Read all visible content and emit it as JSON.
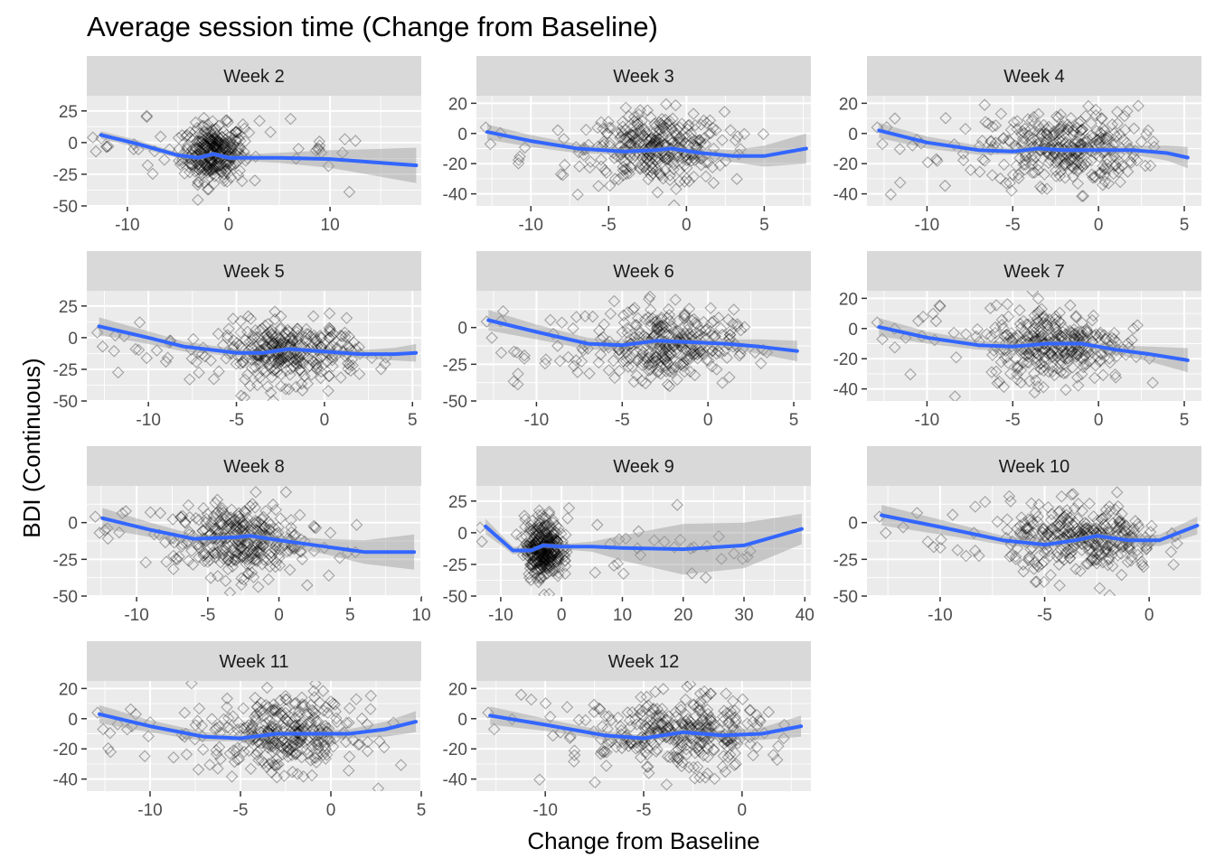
{
  "title": "Average session time (Change from Baseline)",
  "xlabel": "Change from Baseline",
  "ylabel": "BDI (Continuous)",
  "colors": {
    "panel_bg": "#ebebeb",
    "strip_bg": "#d9d9d9",
    "grid": "#ffffff",
    "point": "#000000",
    "smooth_line": "#3366ff",
    "ribbon": "#999999",
    "tick_text": "#4d4d4d"
  },
  "chart_data": {
    "type": "scatter",
    "layout": "facet-wrap 3 columns",
    "point_shape": "open diamond",
    "smoother": "loess with confidence band",
    "grid": true,
    "legend": "none",
    "panels": [
      {
        "name": "Week 2",
        "xlim": [
          -14,
          19
        ],
        "ylim": [
          -50,
          37
        ],
        "xticks": [
          -10,
          0,
          10
        ],
        "yticks": [
          -50,
          -25,
          0,
          25
        ],
        "cluster": {
          "cx": -1.5,
          "sx": 1.5,
          "cy": -8,
          "sy": 11,
          "n": 300
        },
        "smooth": [
          [
            -12.6,
            6
          ],
          [
            -9,
            -1
          ],
          [
            -5,
            -10
          ],
          [
            -3,
            -12
          ],
          [
            -1.5,
            -9
          ],
          [
            0,
            -12
          ],
          [
            5,
            -12
          ],
          [
            10,
            -13
          ],
          [
            15,
            -16
          ],
          [
            18.5,
            -18
          ]
        ],
        "band": [
          3,
          3,
          2,
          2,
          2,
          2,
          4,
          7,
          11,
          14
        ]
      },
      {
        "name": "Week 3",
        "xlim": [
          -13.5,
          8
        ],
        "ylim": [
          -48,
          25
        ],
        "xticks": [
          -10,
          -5,
          0,
          5
        ],
        "yticks": [
          -40,
          -20,
          0,
          20
        ],
        "cluster": {
          "cx": -2,
          "sx": 2.2,
          "cy": -10,
          "sy": 12,
          "n": 300
        },
        "smooth": [
          [
            -12.8,
            1
          ],
          [
            -10,
            -5
          ],
          [
            -7,
            -10
          ],
          [
            -4,
            -12
          ],
          [
            -2,
            -11
          ],
          [
            -1,
            -10
          ],
          [
            1,
            -13
          ],
          [
            3,
            -15
          ],
          [
            5,
            -15
          ],
          [
            7.7,
            -10
          ]
        ],
        "band": [
          5,
          4,
          3,
          2,
          2,
          2,
          3,
          4,
          7,
          10
        ]
      },
      {
        "name": "Week 4",
        "xlim": [
          -13.5,
          6
        ],
        "ylim": [
          -48,
          25
        ],
        "xticks": [
          -10,
          -5,
          0,
          5
        ],
        "yticks": [
          -40,
          -20,
          0,
          20
        ],
        "cluster": {
          "cx": -2,
          "sx": 2.2,
          "cy": -10,
          "sy": 12,
          "n": 300
        },
        "smooth": [
          [
            -12.8,
            2
          ],
          [
            -10,
            -6
          ],
          [
            -7,
            -11
          ],
          [
            -5,
            -12
          ],
          [
            -3.5,
            -10
          ],
          [
            -2,
            -11
          ],
          [
            0,
            -11
          ],
          [
            2,
            -11
          ],
          [
            4,
            -13
          ],
          [
            5.2,
            -16
          ]
        ],
        "band": [
          5,
          4,
          3,
          2,
          2,
          2,
          2,
          3,
          5,
          7
        ]
      },
      {
        "name": "Week 5",
        "xlim": [
          -13.5,
          5.5
        ],
        "ylim": [
          -50,
          37
        ],
        "xticks": [
          -10,
          -5,
          0,
          5
        ],
        "yticks": [
          -50,
          -25,
          0,
          25
        ],
        "cluster": {
          "cx": -2,
          "sx": 2.0,
          "cy": -12,
          "sy": 12,
          "n": 300
        },
        "smooth": [
          [
            -12.8,
            9
          ],
          [
            -10,
            0
          ],
          [
            -8,
            -7
          ],
          [
            -5,
            -12
          ],
          [
            -3.5,
            -12
          ],
          [
            -2,
            -9
          ],
          [
            0,
            -11
          ],
          [
            2,
            -13
          ],
          [
            4,
            -13
          ],
          [
            5.2,
            -12
          ]
        ],
        "band": [
          7,
          5,
          4,
          3,
          2,
          2,
          2,
          3,
          5,
          7
        ]
      },
      {
        "name": "Week 6",
        "xlim": [
          -13.5,
          6
        ],
        "ylim": [
          -50,
          25
        ],
        "xticks": [
          -10,
          -5,
          0,
          5
        ],
        "yticks": [
          -50,
          -25,
          0
        ],
        "cluster": {
          "cx": -2.5,
          "sx": 2.0,
          "cy": -12,
          "sy": 12,
          "n": 300
        },
        "smooth": [
          [
            -12.8,
            5
          ],
          [
            -10,
            -3
          ],
          [
            -7,
            -11
          ],
          [
            -5,
            -12
          ],
          [
            -3,
            -9
          ],
          [
            -1,
            -10
          ],
          [
            1,
            -11
          ],
          [
            3,
            -13
          ],
          [
            5.2,
            -16
          ]
        ],
        "band": [
          7,
          5,
          4,
          3,
          2,
          2,
          3,
          5,
          7
        ]
      },
      {
        "name": "Week 7",
        "xlim": [
          -13.5,
          6
        ],
        "ylim": [
          -48,
          25
        ],
        "xticks": [
          -10,
          -5,
          0,
          5
        ],
        "yticks": [
          -40,
          -20,
          0,
          20
        ],
        "cluster": {
          "cx": -2.5,
          "sx": 2.0,
          "cy": -10,
          "sy": 12,
          "n": 300
        },
        "smooth": [
          [
            -12.8,
            1
          ],
          [
            -10,
            -6
          ],
          [
            -7,
            -11
          ],
          [
            -5,
            -12
          ],
          [
            -3,
            -10
          ],
          [
            -1,
            -10
          ],
          [
            1,
            -14
          ],
          [
            3,
            -17
          ],
          [
            5.2,
            -21
          ]
        ],
        "band": [
          6,
          4,
          3,
          3,
          2,
          2,
          3,
          5,
          8
        ]
      },
      {
        "name": "Week 8",
        "xlim": [
          -13.5,
          10
        ],
        "ylim": [
          -50,
          25
        ],
        "xticks": [
          -10,
          -5,
          0,
          5,
          10
        ],
        "yticks": [
          -50,
          -25,
          0
        ],
        "cluster": {
          "cx": -3,
          "sx": 2.2,
          "cy": -12,
          "sy": 12,
          "n": 300
        },
        "smooth": [
          [
            -12.4,
            3
          ],
          [
            -9,
            -5
          ],
          [
            -6,
            -11
          ],
          [
            -3,
            -10
          ],
          [
            -2,
            -9
          ],
          [
            0,
            -12
          ],
          [
            3,
            -16
          ],
          [
            6,
            -20
          ],
          [
            9.5,
            -20
          ]
        ],
        "band": [
          7,
          5,
          3,
          2,
          2,
          3,
          5,
          8,
          12
        ]
      },
      {
        "name": "Week 9",
        "xlim": [
          -14,
          41
        ],
        "ylim": [
          -50,
          37
        ],
        "xticks": [
          -10,
          0,
          10,
          20,
          30,
          40
        ],
        "yticks": [
          -50,
          -25,
          0,
          25
        ],
        "cluster": {
          "cx": -3,
          "sx": 1.5,
          "cy": -12,
          "sy": 12,
          "n": 300
        },
        "smooth": [
          [
            -12.5,
            5
          ],
          [
            -8,
            -14
          ],
          [
            -5,
            -14
          ],
          [
            -3,
            -10
          ],
          [
            0,
            -11
          ],
          [
            5,
            -11
          ],
          [
            10,
            -12
          ],
          [
            20,
            -13
          ],
          [
            30,
            -10
          ],
          [
            39.5,
            3
          ]
        ],
        "band": [
          6,
          3,
          2,
          2,
          2,
          4,
          10,
          20,
          18,
          12
        ]
      },
      {
        "name": "Week 10",
        "xlim": [
          -13.5,
          2.5
        ],
        "ylim": [
          -50,
          25
        ],
        "xticks": [
          -10,
          -5,
          0
        ],
        "yticks": [
          -50,
          -25,
          0
        ],
        "cluster": {
          "cx": -3,
          "sx": 1.8,
          "cy": -12,
          "sy": 12,
          "n": 300
        },
        "smooth": [
          [
            -12.8,
            5
          ],
          [
            -10,
            -3
          ],
          [
            -7,
            -12
          ],
          [
            -5,
            -15
          ],
          [
            -3.5,
            -12
          ],
          [
            -2.5,
            -9
          ],
          [
            -1,
            -12
          ],
          [
            0.5,
            -12
          ],
          [
            2.3,
            -2
          ]
        ],
        "band": [
          7,
          5,
          3,
          3,
          2,
          2,
          3,
          4,
          6
        ]
      },
      {
        "name": "Week 11",
        "xlim": [
          -13.5,
          5
        ],
        "ylim": [
          -48,
          25
        ],
        "xticks": [
          -10,
          -5,
          0,
          5
        ],
        "yticks": [
          -40,
          -20,
          0,
          20
        ],
        "cluster": {
          "cx": -2.5,
          "sx": 2.0,
          "cy": -10,
          "sy": 12,
          "n": 300
        },
        "smooth": [
          [
            -12.8,
            3
          ],
          [
            -10,
            -5
          ],
          [
            -7,
            -12
          ],
          [
            -5,
            -13
          ],
          [
            -3,
            -10
          ],
          [
            -1,
            -10
          ],
          [
            1,
            -10
          ],
          [
            3,
            -7
          ],
          [
            4.7,
            -2
          ]
        ],
        "band": [
          6,
          4,
          3,
          2,
          2,
          2,
          3,
          5,
          7
        ]
      },
      {
        "name": "Week 12",
        "xlim": [
          -13.5,
          3.5
        ],
        "ylim": [
          -48,
          25
        ],
        "xticks": [
          -10,
          -5,
          0
        ],
        "yticks": [
          -40,
          -20,
          0,
          20
        ],
        "cluster": {
          "cx": -3,
          "sx": 2.0,
          "cy": -10,
          "sy": 12,
          "n": 300
        },
        "smooth": [
          [
            -12.8,
            2
          ],
          [
            -10,
            -4
          ],
          [
            -7,
            -11
          ],
          [
            -5,
            -13
          ],
          [
            -3,
            -9
          ],
          [
            -1,
            -11
          ],
          [
            1,
            -10
          ],
          [
            3,
            -5
          ]
        ],
        "band": [
          6,
          4,
          3,
          2,
          2,
          3,
          4,
          7
        ]
      }
    ]
  }
}
